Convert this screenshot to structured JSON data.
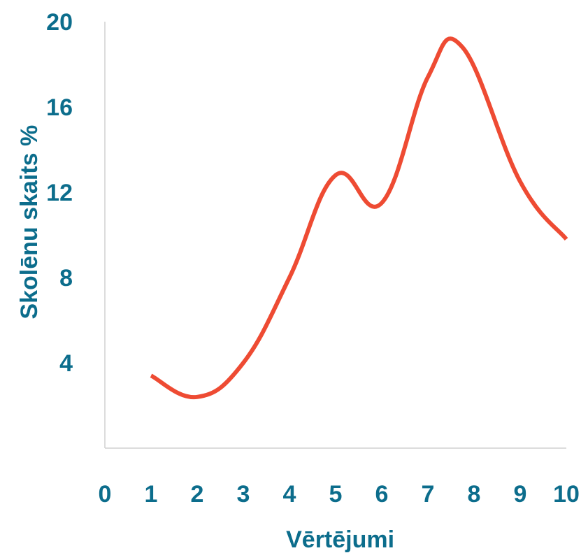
{
  "chart_data": {
    "type": "line",
    "title": "",
    "xlabel": "Vērtējumi",
    "ylabel": "Skolēnu skaits %",
    "x_ticks": [
      "0",
      "1",
      "2",
      "3",
      "4",
      "5",
      "6",
      "7",
      "8",
      "9",
      "10"
    ],
    "y_ticks": [
      "4",
      "8",
      "12",
      "16",
      "20"
    ],
    "xlim": [
      0,
      10
    ],
    "ylim": [
      0,
      20
    ],
    "smooth": true,
    "grid": false,
    "series": [
      {
        "color": "#ee4b33",
        "x": [
          1,
          2,
          3,
          4,
          5,
          6,
          7,
          7.75,
          9,
          10
        ],
        "y": [
          3.4,
          2.4,
          4.0,
          8.0,
          12.8,
          11.5,
          17.4,
          18.8,
          12.5,
          9.8
        ]
      }
    ],
    "axis_color": "#d0d0d0",
    "text_color": "#0c6d8c"
  }
}
